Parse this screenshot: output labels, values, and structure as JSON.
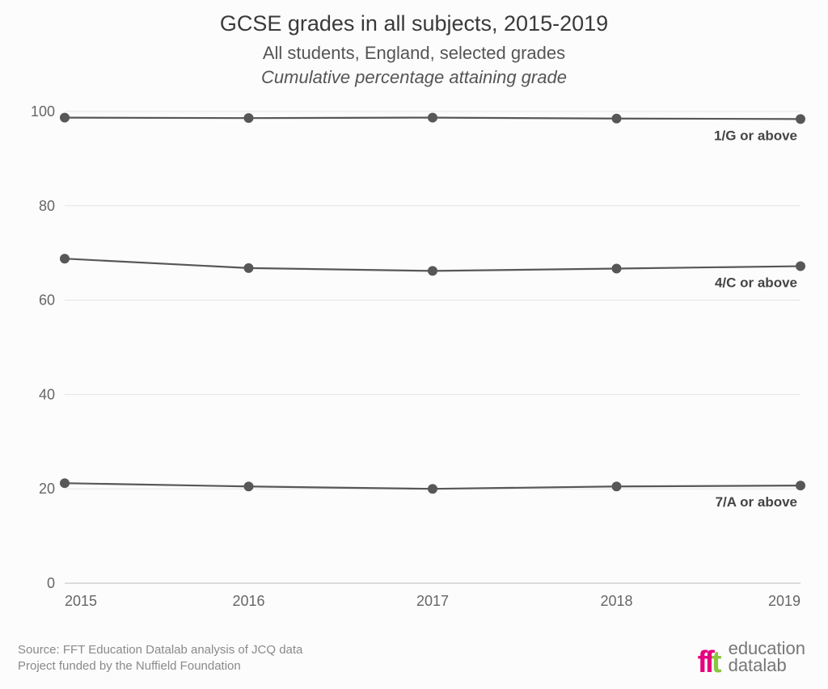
{
  "titles": {
    "main": "GCSE grades in all subjects, 2015-2019",
    "sub_line1": "All students, England, selected grades",
    "sub_line2": "Cumulative percentage attaining grade"
  },
  "chart": {
    "type": "line",
    "background_color": "#fcfcfc",
    "grid_color": "#e4e4e4",
    "axis_zero_color": "#bdbdbd",
    "ylim": [
      0,
      100
    ],
    "ytick_step": 20,
    "yticks": [
      0,
      20,
      40,
      60,
      80,
      100
    ],
    "xlabels": [
      "2015",
      "2016",
      "2017",
      "2018",
      "2019"
    ],
    "line_color": "#575757",
    "marker_color": "#575757",
    "marker_radius": 6,
    "line_width": 2.2,
    "label_color": "#444444",
    "tick_font_color": "#666666",
    "tick_fontsize": 18,
    "label_fontsize": 17,
    "series": [
      {
        "name": "1G",
        "label": "1/G or above",
        "values": [
          98.7,
          98.6,
          98.7,
          98.5,
          98.4
        ],
        "label_dy": 26
      },
      {
        "name": "4C",
        "label": "4/C or above",
        "values": [
          68.8,
          66.8,
          66.2,
          66.7,
          67.2
        ],
        "label_dy": 26
      },
      {
        "name": "7A",
        "label": "7/A or above",
        "values": [
          21.2,
          20.5,
          20.0,
          20.5,
          20.7
        ],
        "label_dy": 26
      }
    ]
  },
  "footer": {
    "line1": "Source: FFT Education Datalab analysis of JCQ data",
    "line2": "Project funded by the Nuffield Foundation"
  },
  "logo": {
    "word1": "education",
    "word2": "datalab",
    "fft_color1": "#e6007e",
    "fft_color2": "#8bc53f"
  }
}
